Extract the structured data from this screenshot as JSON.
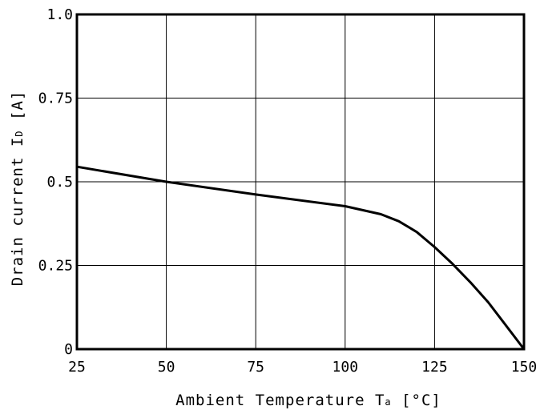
{
  "chart_data": {
    "type": "line",
    "title": "",
    "xlabel": {
      "main": "Ambient Temperature T",
      "sub": "a",
      "unit": " [°C]"
    },
    "ylabel": {
      "main": "Drain current I",
      "sub": "D",
      "unit": " [A]"
    },
    "xlim": [
      25,
      150
    ],
    "ylim": [
      0,
      1.0
    ],
    "x_ticks": [
      25,
      50,
      75,
      100,
      125,
      150
    ],
    "x_tick_labels": [
      "25",
      "50",
      "75",
      "100",
      "125",
      "150"
    ],
    "y_ticks": [
      0,
      0.25,
      0.5,
      0.75,
      1.0
    ],
    "y_tick_labels": [
      "0",
      "0.25",
      "0.5",
      "0.75",
      "1.0"
    ],
    "grid": true,
    "legend": "none",
    "series": [
      {
        "color": "#000000",
        "x": [
          25,
          50,
          75,
          100,
          105,
          110,
          115,
          120,
          125,
          130,
          135,
          140,
          145,
          150
        ],
        "y": [
          0.545,
          0.5,
          0.462,
          0.427,
          0.415,
          0.403,
          0.382,
          0.35,
          0.305,
          0.255,
          0.2,
          0.14,
          0.07,
          0.0
        ]
      }
    ]
  }
}
